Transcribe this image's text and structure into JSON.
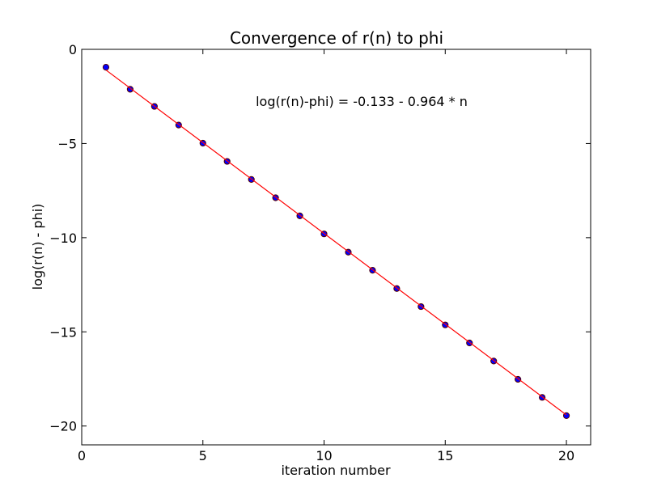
{
  "chart_data": {
    "type": "scatter",
    "title": "Convergence of r(n) to phi",
    "xlabel": "iteration number",
    "ylabel": "log(r(n) - phi)",
    "xlim": [
      0,
      21
    ],
    "ylim": [
      -21,
      0
    ],
    "xticks": [
      0,
      5,
      10,
      15,
      20
    ],
    "yticks": [
      0,
      -5,
      -10,
      -15,
      -20
    ],
    "xtick_labels": [
      "0",
      "5",
      "10",
      "15",
      "20"
    ],
    "ytick_labels": [
      "0",
      "−5",
      "−10",
      "−15",
      "−20"
    ],
    "annotation": "log(r(n)-phi) = -0.133 - 0.964 * n",
    "grid": false,
    "series": [
      {
        "kind": "scatter",
        "color": "#0000ff",
        "edge_color": "#550000",
        "x": [
          1,
          2,
          3,
          4,
          5,
          6,
          7,
          8,
          9,
          10,
          11,
          12,
          13,
          14,
          15,
          16,
          17,
          18,
          19,
          20
        ],
        "y": [
          -0.95,
          -2.12,
          -3.03,
          -4.02,
          -4.98,
          -5.95,
          -6.91,
          -7.88,
          -8.84,
          -9.8,
          -10.77,
          -11.73,
          -12.7,
          -13.66,
          -14.63,
          -15.59,
          -16.55,
          -17.52,
          -18.48,
          -19.45
        ]
      },
      {
        "kind": "line",
        "color": "#ff0000",
        "x": [
          1,
          20
        ],
        "y": [
          -1.097,
          -19.413
        ]
      }
    ]
  }
}
